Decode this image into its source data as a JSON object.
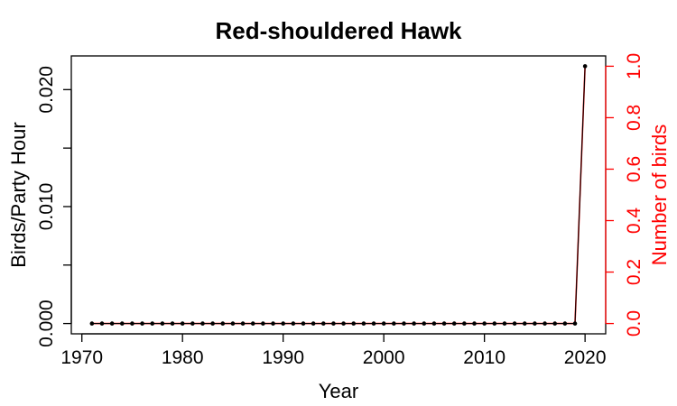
{
  "chart_data": {
    "type": "line",
    "title": "Red-shouldered Hawk",
    "xlabel": "Year",
    "ylabel": "Birds/Party Hour",
    "y2label": "Number of birds",
    "xlim": [
      1971,
      2020
    ],
    "ylim": [
      0,
      0.022
    ],
    "y2lim": [
      0,
      1
    ],
    "x_ticks": [
      1970,
      1980,
      1990,
      2000,
      2010,
      2020
    ],
    "y_ticks": [
      0.0,
      0.005,
      0.01,
      0.015,
      0.02
    ],
    "y_tick_labels": [
      "0.000",
      "",
      "0.010",
      "",
      "0.020"
    ],
    "y2_ticks": [
      0.0,
      0.2,
      0.4,
      0.6,
      0.8,
      1.0
    ],
    "y2_tick_labels": [
      "0.0",
      "0.2",
      "0.4",
      "0.6",
      "0.8",
      "1.0"
    ],
    "grid": false,
    "colors": {
      "left_axis": "#000000",
      "right_axis": "#ff0000",
      "count_line": "#ff0000",
      "rate_line": "#000000"
    },
    "series": [
      {
        "axis": "left",
        "x": [
          1971,
          1972,
          1973,
          1974,
          1975,
          1976,
          1977,
          1978,
          1979,
          1980,
          1981,
          1982,
          1983,
          1984,
          1985,
          1986,
          1987,
          1988,
          1989,
          1990,
          1991,
          1992,
          1993,
          1994,
          1995,
          1996,
          1997,
          1998,
          1999,
          2000,
          2001,
          2002,
          2003,
          2004,
          2005,
          2006,
          2007,
          2008,
          2009,
          2010,
          2011,
          2012,
          2013,
          2014,
          2015,
          2016,
          2017,
          2018,
          2019,
          2020
        ],
        "values": [
          0,
          0,
          0,
          0,
          0,
          0,
          0,
          0,
          0,
          0,
          0,
          0,
          0,
          0,
          0,
          0,
          0,
          0,
          0,
          0,
          0,
          0,
          0,
          0,
          0,
          0,
          0,
          0,
          0,
          0,
          0,
          0,
          0,
          0,
          0,
          0,
          0,
          0,
          0,
          0,
          0,
          0,
          0,
          0,
          0,
          0,
          0,
          0,
          0,
          0.022
        ]
      },
      {
        "axis": "right",
        "x": [
          1971,
          1972,
          1973,
          1974,
          1975,
          1976,
          1977,
          1978,
          1979,
          1980,
          1981,
          1982,
          1983,
          1984,
          1985,
          1986,
          1987,
          1988,
          1989,
          1990,
          1991,
          1992,
          1993,
          1994,
          1995,
          1996,
          1997,
          1998,
          1999,
          2000,
          2001,
          2002,
          2003,
          2004,
          2005,
          2006,
          2007,
          2008,
          2009,
          2010,
          2011,
          2012,
          2013,
          2014,
          2015,
          2016,
          2017,
          2018,
          2019,
          2020
        ],
        "values": [
          0,
          0,
          0,
          0,
          0,
          0,
          0,
          0,
          0,
          0,
          0,
          0,
          0,
          0,
          0,
          0,
          0,
          0,
          0,
          0,
          0,
          0,
          0,
          0,
          0,
          0,
          0,
          0,
          0,
          0,
          0,
          0,
          0,
          0,
          0,
          0,
          0,
          0,
          0,
          0,
          0,
          0,
          0,
          0,
          0,
          0,
          0,
          0,
          0,
          1
        ]
      }
    ]
  }
}
